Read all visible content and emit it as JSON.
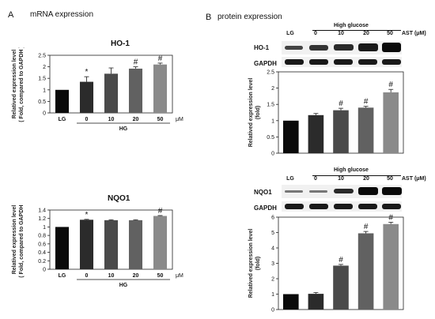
{
  "panel_a": {
    "letter": "A",
    "heading": "mRNA expression"
  },
  "panel_b": {
    "letter": "B",
    "heading": "protein expression"
  },
  "blots": {
    "high_glucose_label": "High glucose",
    "ast_label": "AST (μM)",
    "lanes": [
      "LG",
      "0",
      "10",
      "20",
      "50"
    ],
    "top": {
      "rows": [
        "HO-1",
        "GAPDH"
      ]
    },
    "bottom": {
      "rows": [
        "NQO1",
        "GAPDH"
      ]
    }
  },
  "colors": {
    "lg": "#0a0a0a",
    "hg0": "#2b2b2b",
    "hg10": "#4a4a4a",
    "hg20": "#616161",
    "hg50": "#8a8a8a",
    "error": "#333333"
  },
  "chart_data": [
    {
      "id": "a-ho1",
      "type": "bar",
      "title": "HO-1",
      "ylabel": [
        "Relatived expression level",
        "( Fold, compared to GAPDH )"
      ],
      "categories": [
        "LG",
        "0",
        "10",
        "20",
        "50"
      ],
      "group_label": "HG",
      "unit_label": "μM",
      "values": [
        1.0,
        1.35,
        1.7,
        1.92,
        2.1
      ],
      "errors": [
        0.0,
        0.22,
        0.25,
        0.08,
        0.06
      ],
      "annotations": [
        "",
        "*",
        "",
        "#",
        "#"
      ],
      "ylim": [
        0,
        2.5
      ],
      "yticks": [
        "0",
        "0.5",
        "1",
        "1.5",
        "2",
        "2.5"
      ],
      "ytick_values": [
        0,
        0.5,
        1,
        1.5,
        2,
        2.5
      ]
    },
    {
      "id": "a-nqo1",
      "type": "bar",
      "title": "NQO1",
      "ylabel": [
        "Relatived expression level",
        "( Fold, compared to GAPDH )"
      ],
      "categories": [
        "LG",
        "0",
        "10",
        "20",
        "50"
      ],
      "group_label": "HG",
      "unit_label": "μM",
      "values": [
        1.0,
        1.17,
        1.16,
        1.16,
        1.26
      ],
      "errors": [
        0.0,
        0.01,
        0.01,
        0.01,
        0.01
      ],
      "annotations": [
        "",
        "*",
        "",
        "",
        "#"
      ],
      "ylim": [
        0,
        1.4
      ],
      "yticks": [
        "0",
        "0.2",
        "0.4",
        "0.6",
        "0.8",
        "1",
        "1.2",
        "1.4"
      ],
      "ytick_values": [
        0,
        0.2,
        0.4,
        0.6,
        0.8,
        1,
        1.2,
        1.4
      ]
    },
    {
      "id": "b-ho1",
      "type": "bar",
      "ylabel": [
        "Relatived expression level",
        "(fold)"
      ],
      "values": [
        1.0,
        1.17,
        1.32,
        1.4,
        1.87
      ],
      "errors": [
        0.0,
        0.05,
        0.06,
        0.04,
        0.09
      ],
      "annotations": [
        "",
        "",
        "#",
        "#",
        "#"
      ],
      "ylim": [
        0,
        2.5
      ],
      "yticks": [
        "0",
        "0.5",
        "1",
        "1.5",
        "2",
        "2.5"
      ],
      "ytick_values": [
        0,
        0.5,
        1,
        1.5,
        2,
        2.5
      ]
    },
    {
      "id": "b-nqo1",
      "type": "bar",
      "ylabel": [
        "Relatived expression level",
        "(fold)"
      ],
      "values": [
        1.0,
        1.02,
        2.85,
        4.95,
        5.55
      ],
      "errors": [
        0.0,
        0.08,
        0.08,
        0.12,
        0.12
      ],
      "annotations": [
        "",
        "",
        "#",
        "#",
        "#"
      ],
      "ylim": [
        0,
        6
      ],
      "yticks": [
        "0",
        "1",
        "2",
        "3",
        "4",
        "5",
        "6"
      ],
      "ytick_values": [
        0,
        1,
        2,
        3,
        4,
        5,
        6
      ]
    }
  ]
}
